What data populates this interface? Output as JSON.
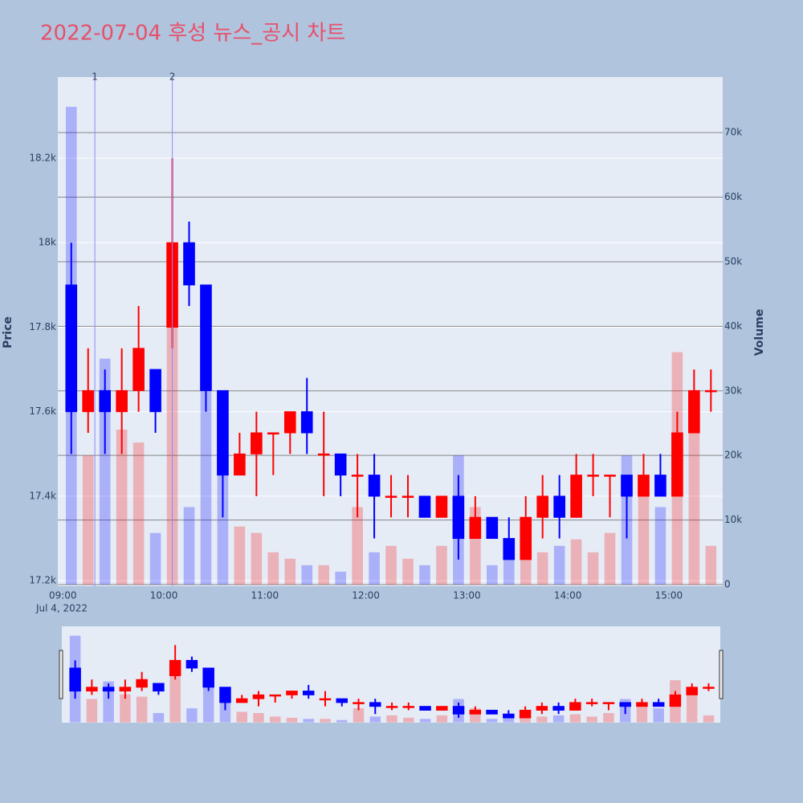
{
  "chart_data": {
    "type": "candlestick",
    "title": "2022-07-04 후성 뉴스_공시 차트",
    "y_label": "Price",
    "y2_label": "Volume",
    "x_date_label": "Jul 4, 2022",
    "increasing_color": "#ff0000",
    "decreasing_color": "#0000ff",
    "x": [
      "2022-07-04T09:00",
      "2022-07-04T09:10",
      "2022-07-04T09:20",
      "2022-07-04T09:30",
      "2022-07-04T09:40",
      "2022-07-04T09:50",
      "2022-07-04T10:00",
      "2022-07-04T10:10",
      "2022-07-04T10:20",
      "2022-07-04T10:30",
      "2022-07-04T10:40",
      "2022-07-04T10:50",
      "2022-07-04T11:00",
      "2022-07-04T11:10",
      "2022-07-04T11:20",
      "2022-07-04T11:30",
      "2022-07-04T11:40",
      "2022-07-04T11:50",
      "2022-07-04T12:00",
      "2022-07-04T12:10",
      "2022-07-04T12:20",
      "2022-07-04T12:30",
      "2022-07-04T12:40",
      "2022-07-04T12:50",
      "2022-07-04T13:00",
      "2022-07-04T13:10",
      "2022-07-04T13:20",
      "2022-07-04T13:30",
      "2022-07-04T13:40",
      "2022-07-04T13:50",
      "2022-07-04T14:00",
      "2022-07-04T14:10",
      "2022-07-04T14:20",
      "2022-07-04T14:30",
      "2022-07-04T14:40",
      "2022-07-04T14:50",
      "2022-07-04T15:00",
      "2022-07-04T15:10",
      "2022-07-04T15:20"
    ],
    "open": [
      17900,
      17600,
      17650,
      17600,
      17650,
      17700,
      17800,
      18000,
      17900,
      17650,
      17450,
      17500,
      17550,
      17550,
      17600,
      17500,
      17500,
      17450,
      17450,
      17400,
      17400,
      17400,
      17350,
      17400,
      17300,
      17350,
      17300,
      17250,
      17350,
      17400,
      17350,
      17450,
      17450,
      17450,
      17400,
      17450,
      17400,
      17550,
      17650
    ],
    "high": [
      18000,
      17750,
      17700,
      17750,
      17850,
      17700,
      18200,
      18050,
      17900,
      17650,
      17550,
      17600,
      17550,
      17600,
      17680,
      17600,
      17500,
      17500,
      17500,
      17450,
      17450,
      17400,
      17400,
      17450,
      17400,
      17350,
      17350,
      17400,
      17450,
      17450,
      17500,
      17500,
      17450,
      17450,
      17500,
      17500,
      17600,
      17700,
      17700
    ],
    "low": [
      17500,
      17550,
      17500,
      17500,
      17600,
      17550,
      17750,
      17850,
      17600,
      17350,
      17450,
      17400,
      17450,
      17500,
      17500,
      17400,
      17400,
      17350,
      17300,
      17350,
      17350,
      17350,
      17350,
      17250,
      17300,
      17300,
      17250,
      17250,
      17300,
      17300,
      17350,
      17400,
      17350,
      17300,
      17400,
      17400,
      17400,
      17550,
      17600
    ],
    "close": [
      17600,
      17650,
      17600,
      17650,
      17750,
      17600,
      18000,
      17900,
      17650,
      17450,
      17500,
      17550,
      17550,
      17600,
      17550,
      17500,
      17450,
      17450,
      17400,
      17400,
      17400,
      17350,
      17400,
      17300,
      17350,
      17300,
      17250,
      17350,
      17400,
      17350,
      17450,
      17450,
      17450,
      17400,
      17450,
      17400,
      17550,
      17650,
      17650
    ],
    "volume": [
      74000,
      20000,
      35000,
      24000,
      22000,
      8000,
      50000,
      12000,
      30000,
      20000,
      9000,
      8000,
      5000,
      4000,
      3000,
      3000,
      2000,
      12000,
      5000,
      6000,
      4000,
      3000,
      6000,
      20000,
      12000,
      3000,
      6000,
      4000,
      5000,
      6000,
      7000,
      5000,
      8000,
      20000,
      14000,
      12000,
      36000,
      30000,
      6000
    ],
    "annotations": [
      {
        "x": "2022-07-04T09:19",
        "text": "1"
      },
      {
        "x": "2022-07-04T10:05",
        "text": "2"
      }
    ],
    "xlim": [
      "2022-07-04T08:57",
      "2022-07-04T15:32"
    ],
    "xticks": [
      {
        "value": "2022-07-04T09:00",
        "label": "09:00"
      },
      {
        "value": "2022-07-04T10:00",
        "label": "10:00"
      },
      {
        "value": "2022-07-04T11:00",
        "label": "11:00"
      },
      {
        "value": "2022-07-04T12:00",
        "label": "12:00"
      },
      {
        "value": "2022-07-04T13:00",
        "label": "13:00"
      },
      {
        "value": "2022-07-04T14:00",
        "label": "14:00"
      },
      {
        "value": "2022-07-04T15:00",
        "label": "15:00"
      }
    ],
    "ylim": [
      17187,
      18392
    ],
    "yticks": [
      {
        "value": 17200,
        "label": "17.2k"
      },
      {
        "value": 17400,
        "label": "17.4k"
      },
      {
        "value": 17600,
        "label": "17.6k"
      },
      {
        "value": 17800,
        "label": "17.8k"
      },
      {
        "value": 18000,
        "label": "18k"
      },
      {
        "value": 18200,
        "label": "18.2k"
      }
    ],
    "y2lim": [
      -250,
      78600
    ],
    "y2ticks": [
      0,
      {
        "value": 10000,
        "label": "10k"
      },
      {
        "value": 20000,
        "label": "20k"
      },
      {
        "value": 30000,
        "label": "30k"
      },
      {
        "value": 40000,
        "label": "40k"
      },
      {
        "value": 50000,
        "label": "50k"
      },
      {
        "value": 60000,
        "label": "60k"
      },
      {
        "value": 70000,
        "label": "70k"
      }
    ],
    "grid": true,
    "rangeslider": true
  }
}
